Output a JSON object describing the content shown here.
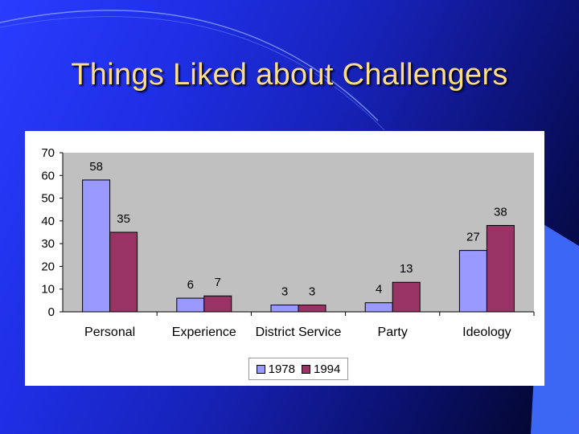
{
  "slide": {
    "title": "Things Liked about Challengers"
  },
  "colors": {
    "series_1978": "#9999ff",
    "series_1994": "#993366",
    "plot_background": "#c0c0c0",
    "title": "#ffdd88"
  },
  "chart_data": {
    "type": "bar",
    "title": "",
    "xlabel": "",
    "ylabel": "",
    "categories": [
      "Personal",
      "Experience",
      "District Service",
      "Party",
      "Ideology"
    ],
    "series": [
      {
        "name": "1978",
        "values": [
          58,
          6,
          3,
          4,
          27
        ]
      },
      {
        "name": "1994",
        "values": [
          35,
          7,
          3,
          13,
          38
        ]
      }
    ],
    "ylim": [
      0,
      70
    ],
    "yticks": [
      "0",
      "10",
      "20",
      "30",
      "40",
      "50",
      "60",
      "70"
    ],
    "grid": false,
    "legend_position": "bottom",
    "data_labels": true
  }
}
